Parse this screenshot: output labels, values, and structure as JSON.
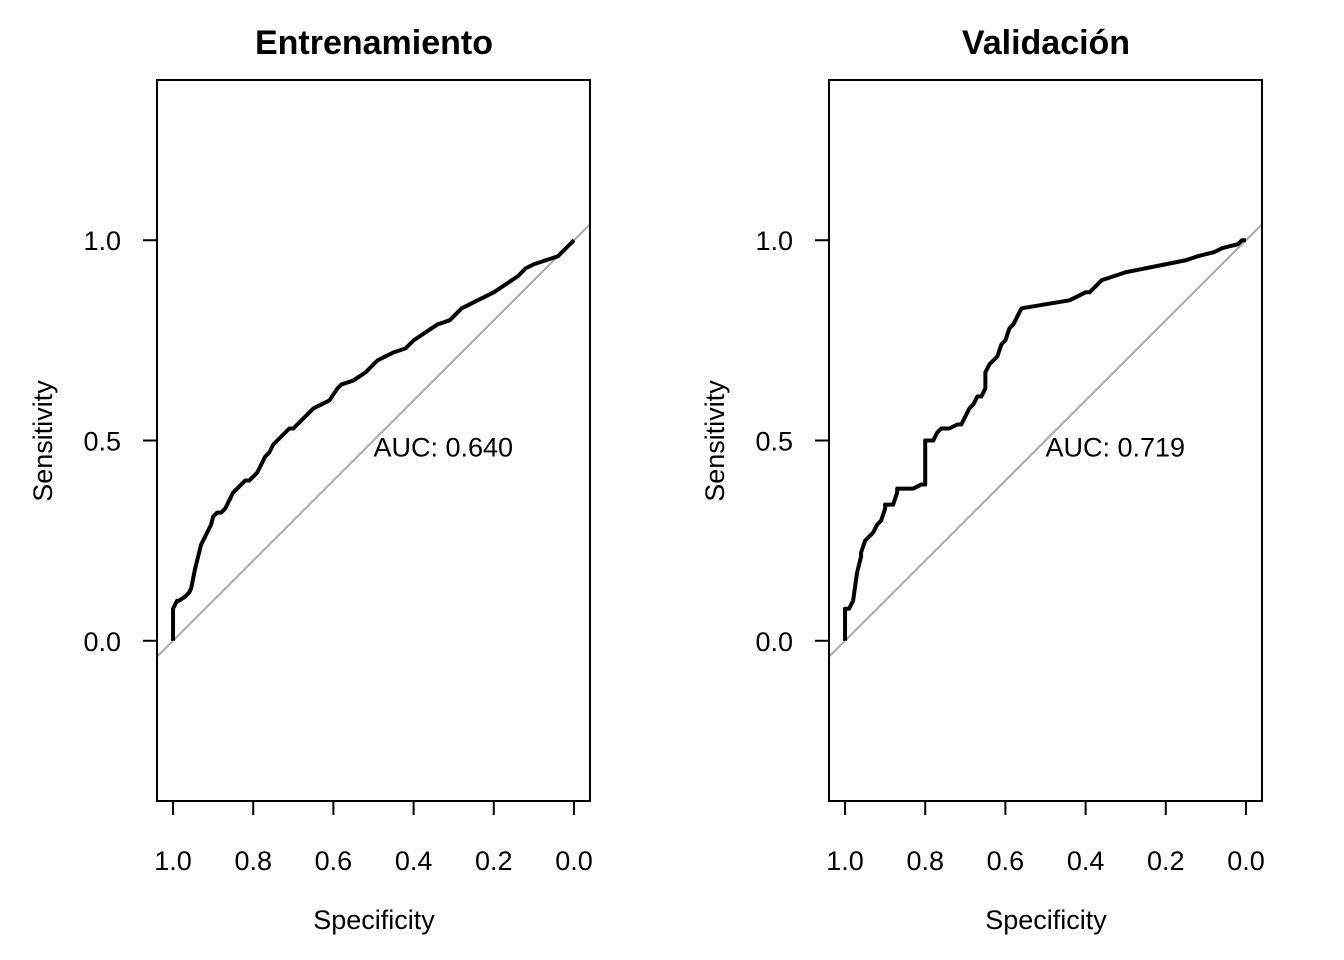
{
  "chart_data": [
    {
      "type": "line",
      "title": "Entrenamiento",
      "xlabel": "Specificity",
      "ylabel": "Sensitivity",
      "x_reversed": true,
      "xlim": [
        1.04,
        -0.04
      ],
      "ylim": [
        -0.4,
        1.4
      ],
      "xticks": [
        "1.0",
        "0.8",
        "0.6",
        "0.4",
        "0.2",
        "0.0"
      ],
      "yticks": [
        "0.0",
        "0.5",
        "1.0"
      ],
      "annotation": "AUC: 0.640",
      "annotation_pos": {
        "x": 0.5,
        "y": 0.46
      },
      "diagonal_color": "#a9a9a9",
      "series": [
        {
          "color": "#000000",
          "x": [
            1.0,
            1.0,
            0.99,
            0.985,
            0.97,
            0.96,
            0.955,
            0.945,
            0.94,
            0.935,
            0.93,
            0.92,
            0.91,
            0.905,
            0.9,
            0.89,
            0.88,
            0.87,
            0.86,
            0.85,
            0.84,
            0.83,
            0.82,
            0.81,
            0.79,
            0.78,
            0.77,
            0.76,
            0.75,
            0.74,
            0.73,
            0.72,
            0.71,
            0.7,
            0.68,
            0.66,
            0.65,
            0.63,
            0.61,
            0.59,
            0.58,
            0.55,
            0.52,
            0.49,
            0.45,
            0.42,
            0.4,
            0.37,
            0.34,
            0.31,
            0.28,
            0.24,
            0.2,
            0.17,
            0.14,
            0.12,
            0.1,
            0.07,
            0.04,
            0.02,
            0.0
          ],
          "y": [
            0.0,
            0.08,
            0.1,
            0.1,
            0.11,
            0.12,
            0.13,
            0.18,
            0.2,
            0.22,
            0.24,
            0.26,
            0.28,
            0.29,
            0.31,
            0.32,
            0.32,
            0.33,
            0.35,
            0.37,
            0.38,
            0.39,
            0.4,
            0.4,
            0.42,
            0.44,
            0.46,
            0.47,
            0.49,
            0.5,
            0.51,
            0.52,
            0.53,
            0.53,
            0.55,
            0.57,
            0.58,
            0.59,
            0.6,
            0.63,
            0.64,
            0.65,
            0.67,
            0.7,
            0.72,
            0.73,
            0.75,
            0.77,
            0.79,
            0.8,
            0.83,
            0.85,
            0.87,
            0.89,
            0.91,
            0.93,
            0.94,
            0.95,
            0.96,
            0.98,
            1.0
          ]
        }
      ]
    },
    {
      "type": "line",
      "title": "Validación",
      "xlabel": "Specificity",
      "ylabel": "Sensitivity",
      "x_reversed": true,
      "xlim": [
        1.04,
        -0.04
      ],
      "ylim": [
        -0.4,
        1.4
      ],
      "xticks": [
        "1.0",
        "0.8",
        "0.6",
        "0.4",
        "0.2",
        "0.0"
      ],
      "yticks": [
        "0.0",
        "0.5",
        "1.0"
      ],
      "annotation": "AUC: 0.719",
      "annotation_pos": {
        "x": 0.5,
        "y": 0.46
      },
      "diagonal_color": "#a9a9a9",
      "series": [
        {
          "color": "#000000",
          "x": [
            1.0,
            1.0,
            0.99,
            0.98,
            0.98,
            0.97,
            0.97,
            0.96,
            0.96,
            0.95,
            0.94,
            0.93,
            0.92,
            0.91,
            0.9,
            0.9,
            0.88,
            0.87,
            0.87,
            0.83,
            0.81,
            0.8,
            0.8,
            0.78,
            0.77,
            0.76,
            0.74,
            0.72,
            0.71,
            0.7,
            0.69,
            0.68,
            0.67,
            0.66,
            0.65,
            0.65,
            0.64,
            0.63,
            0.62,
            0.61,
            0.6,
            0.59,
            0.58,
            0.57,
            0.56,
            0.5,
            0.44,
            0.4,
            0.39,
            0.37,
            0.36,
            0.33,
            0.3,
            0.25,
            0.2,
            0.15,
            0.12,
            0.08,
            0.06,
            0.02,
            0.01,
            0.0
          ],
          "y": [
            0.0,
            0.08,
            0.08,
            0.1,
            0.1,
            0.17,
            0.17,
            0.21,
            0.22,
            0.25,
            0.26,
            0.27,
            0.29,
            0.3,
            0.33,
            0.34,
            0.34,
            0.37,
            0.38,
            0.38,
            0.39,
            0.39,
            0.5,
            0.5,
            0.52,
            0.53,
            0.53,
            0.54,
            0.54,
            0.56,
            0.58,
            0.59,
            0.61,
            0.61,
            0.63,
            0.67,
            0.69,
            0.7,
            0.71,
            0.74,
            0.75,
            0.78,
            0.79,
            0.81,
            0.83,
            0.84,
            0.85,
            0.87,
            0.87,
            0.89,
            0.9,
            0.91,
            0.92,
            0.93,
            0.94,
            0.95,
            0.96,
            0.97,
            0.98,
            0.99,
            1.0,
            1.0
          ]
        }
      ]
    }
  ]
}
